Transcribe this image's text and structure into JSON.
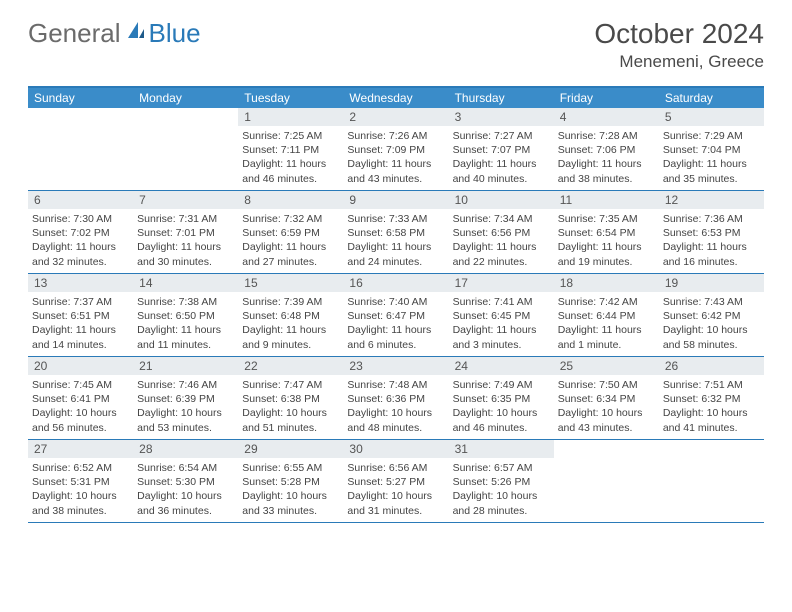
{
  "logo": {
    "text1": "General",
    "text2": "Blue"
  },
  "title": "October 2024",
  "location": "Menemeni, Greece",
  "colors": {
    "header_bg": "#3a8cc9",
    "header_text": "#ffffff",
    "border": "#2a7ab8",
    "daynum_bg": "#e8ecef",
    "daynum_text": "#555555",
    "body_text": "#444444",
    "logo_gray": "#6b6b6b",
    "logo_blue": "#2a7ab8",
    "title_color": "#4a4a4a"
  },
  "weekdays": [
    "Sunday",
    "Monday",
    "Tuesday",
    "Wednesday",
    "Thursday",
    "Friday",
    "Saturday"
  ],
  "weeks": [
    [
      {
        "empty": true
      },
      {
        "empty": true
      },
      {
        "num": "1",
        "sr": "Sunrise: 7:25 AM",
        "ss": "Sunset: 7:11 PM",
        "dl1": "Daylight: 11 hours",
        "dl2": "and 46 minutes."
      },
      {
        "num": "2",
        "sr": "Sunrise: 7:26 AM",
        "ss": "Sunset: 7:09 PM",
        "dl1": "Daylight: 11 hours",
        "dl2": "and 43 minutes."
      },
      {
        "num": "3",
        "sr": "Sunrise: 7:27 AM",
        "ss": "Sunset: 7:07 PM",
        "dl1": "Daylight: 11 hours",
        "dl2": "and 40 minutes."
      },
      {
        "num": "4",
        "sr": "Sunrise: 7:28 AM",
        "ss": "Sunset: 7:06 PM",
        "dl1": "Daylight: 11 hours",
        "dl2": "and 38 minutes."
      },
      {
        "num": "5",
        "sr": "Sunrise: 7:29 AM",
        "ss": "Sunset: 7:04 PM",
        "dl1": "Daylight: 11 hours",
        "dl2": "and 35 minutes."
      }
    ],
    [
      {
        "num": "6",
        "sr": "Sunrise: 7:30 AM",
        "ss": "Sunset: 7:02 PM",
        "dl1": "Daylight: 11 hours",
        "dl2": "and 32 minutes."
      },
      {
        "num": "7",
        "sr": "Sunrise: 7:31 AM",
        "ss": "Sunset: 7:01 PM",
        "dl1": "Daylight: 11 hours",
        "dl2": "and 30 minutes."
      },
      {
        "num": "8",
        "sr": "Sunrise: 7:32 AM",
        "ss": "Sunset: 6:59 PM",
        "dl1": "Daylight: 11 hours",
        "dl2": "and 27 minutes."
      },
      {
        "num": "9",
        "sr": "Sunrise: 7:33 AM",
        "ss": "Sunset: 6:58 PM",
        "dl1": "Daylight: 11 hours",
        "dl2": "and 24 minutes."
      },
      {
        "num": "10",
        "sr": "Sunrise: 7:34 AM",
        "ss": "Sunset: 6:56 PM",
        "dl1": "Daylight: 11 hours",
        "dl2": "and 22 minutes."
      },
      {
        "num": "11",
        "sr": "Sunrise: 7:35 AM",
        "ss": "Sunset: 6:54 PM",
        "dl1": "Daylight: 11 hours",
        "dl2": "and 19 minutes."
      },
      {
        "num": "12",
        "sr": "Sunrise: 7:36 AM",
        "ss": "Sunset: 6:53 PM",
        "dl1": "Daylight: 11 hours",
        "dl2": "and 16 minutes."
      }
    ],
    [
      {
        "num": "13",
        "sr": "Sunrise: 7:37 AM",
        "ss": "Sunset: 6:51 PM",
        "dl1": "Daylight: 11 hours",
        "dl2": "and 14 minutes."
      },
      {
        "num": "14",
        "sr": "Sunrise: 7:38 AM",
        "ss": "Sunset: 6:50 PM",
        "dl1": "Daylight: 11 hours",
        "dl2": "and 11 minutes."
      },
      {
        "num": "15",
        "sr": "Sunrise: 7:39 AM",
        "ss": "Sunset: 6:48 PM",
        "dl1": "Daylight: 11 hours",
        "dl2": "and 9 minutes."
      },
      {
        "num": "16",
        "sr": "Sunrise: 7:40 AM",
        "ss": "Sunset: 6:47 PM",
        "dl1": "Daylight: 11 hours",
        "dl2": "and 6 minutes."
      },
      {
        "num": "17",
        "sr": "Sunrise: 7:41 AM",
        "ss": "Sunset: 6:45 PM",
        "dl1": "Daylight: 11 hours",
        "dl2": "and 3 minutes."
      },
      {
        "num": "18",
        "sr": "Sunrise: 7:42 AM",
        "ss": "Sunset: 6:44 PM",
        "dl1": "Daylight: 11 hours",
        "dl2": "and 1 minute."
      },
      {
        "num": "19",
        "sr": "Sunrise: 7:43 AM",
        "ss": "Sunset: 6:42 PM",
        "dl1": "Daylight: 10 hours",
        "dl2": "and 58 minutes."
      }
    ],
    [
      {
        "num": "20",
        "sr": "Sunrise: 7:45 AM",
        "ss": "Sunset: 6:41 PM",
        "dl1": "Daylight: 10 hours",
        "dl2": "and 56 minutes."
      },
      {
        "num": "21",
        "sr": "Sunrise: 7:46 AM",
        "ss": "Sunset: 6:39 PM",
        "dl1": "Daylight: 10 hours",
        "dl2": "and 53 minutes."
      },
      {
        "num": "22",
        "sr": "Sunrise: 7:47 AM",
        "ss": "Sunset: 6:38 PM",
        "dl1": "Daylight: 10 hours",
        "dl2": "and 51 minutes."
      },
      {
        "num": "23",
        "sr": "Sunrise: 7:48 AM",
        "ss": "Sunset: 6:36 PM",
        "dl1": "Daylight: 10 hours",
        "dl2": "and 48 minutes."
      },
      {
        "num": "24",
        "sr": "Sunrise: 7:49 AM",
        "ss": "Sunset: 6:35 PM",
        "dl1": "Daylight: 10 hours",
        "dl2": "and 46 minutes."
      },
      {
        "num": "25",
        "sr": "Sunrise: 7:50 AM",
        "ss": "Sunset: 6:34 PM",
        "dl1": "Daylight: 10 hours",
        "dl2": "and 43 minutes."
      },
      {
        "num": "26",
        "sr": "Sunrise: 7:51 AM",
        "ss": "Sunset: 6:32 PM",
        "dl1": "Daylight: 10 hours",
        "dl2": "and 41 minutes."
      }
    ],
    [
      {
        "num": "27",
        "sr": "Sunrise: 6:52 AM",
        "ss": "Sunset: 5:31 PM",
        "dl1": "Daylight: 10 hours",
        "dl2": "and 38 minutes."
      },
      {
        "num": "28",
        "sr": "Sunrise: 6:54 AM",
        "ss": "Sunset: 5:30 PM",
        "dl1": "Daylight: 10 hours",
        "dl2": "and 36 minutes."
      },
      {
        "num": "29",
        "sr": "Sunrise: 6:55 AM",
        "ss": "Sunset: 5:28 PM",
        "dl1": "Daylight: 10 hours",
        "dl2": "and 33 minutes."
      },
      {
        "num": "30",
        "sr": "Sunrise: 6:56 AM",
        "ss": "Sunset: 5:27 PM",
        "dl1": "Daylight: 10 hours",
        "dl2": "and 31 minutes."
      },
      {
        "num": "31",
        "sr": "Sunrise: 6:57 AM",
        "ss": "Sunset: 5:26 PM",
        "dl1": "Daylight: 10 hours",
        "dl2": "and 28 minutes."
      },
      {
        "empty": true
      },
      {
        "empty": true
      }
    ]
  ]
}
